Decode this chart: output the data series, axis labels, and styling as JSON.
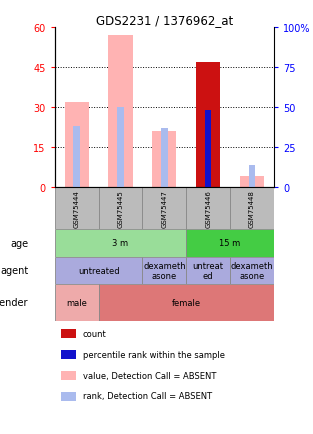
{
  "title": "GDS2231 / 1376962_at",
  "samples": [
    "GSM75444",
    "GSM75445",
    "GSM75447",
    "GSM75446",
    "GSM75448"
  ],
  "bar_values": [
    32,
    57,
    21,
    47,
    4
  ],
  "bar_colors_value": [
    "#ffb3b3",
    "#ffb3b3",
    "#ffb3b3",
    "#cc1111",
    "#ffb3b3"
  ],
  "rank_values": [
    23,
    30,
    22,
    29,
    8
  ],
  "rank_bar_colors": [
    "#aabbee",
    "#aabbee",
    "#aabbee",
    "#1111cc",
    "#aabbee"
  ],
  "ylim_left": [
    0,
    60
  ],
  "ylim_right": [
    0,
    100
  ],
  "yticks_left": [
    0,
    15,
    30,
    45,
    60
  ],
  "yticks_right": [
    0,
    25,
    50,
    75,
    100
  ],
  "age_groups": [
    {
      "label": "3 m",
      "cols": [
        0,
        1,
        2
      ],
      "color": "#99dd99"
    },
    {
      "label": "15 m",
      "cols": [
        3,
        4
      ],
      "color": "#44cc44"
    }
  ],
  "agent_groups": [
    {
      "label": "untreated",
      "cols": [
        0,
        1
      ],
      "color": "#aaaadd"
    },
    {
      "label": "dexameth\nasone",
      "cols": [
        2
      ],
      "color": "#aaaadd"
    },
    {
      "label": "untreat\ned",
      "cols": [
        3
      ],
      "color": "#aaaadd"
    },
    {
      "label": "dexameth\nasone",
      "cols": [
        4
      ],
      "color": "#aaaadd"
    }
  ],
  "gender_groups": [
    {
      "label": "male",
      "cols": [
        0
      ],
      "color": "#eeaaaa"
    },
    {
      "label": "female",
      "cols": [
        1,
        2,
        3,
        4
      ],
      "color": "#dd7777"
    }
  ],
  "legend_items": [
    {
      "color": "#cc1111",
      "label": "count"
    },
    {
      "color": "#1111cc",
      "label": "percentile rank within the sample"
    },
    {
      "color": "#ffb3b3",
      "label": "value, Detection Call = ABSENT"
    },
    {
      "color": "#aabbee",
      "label": "rank, Detection Call = ABSENT"
    }
  ],
  "sample_col_color": "#bbbbbb",
  "value_bar_width": 0.55,
  "rank_bar_width": 0.15
}
